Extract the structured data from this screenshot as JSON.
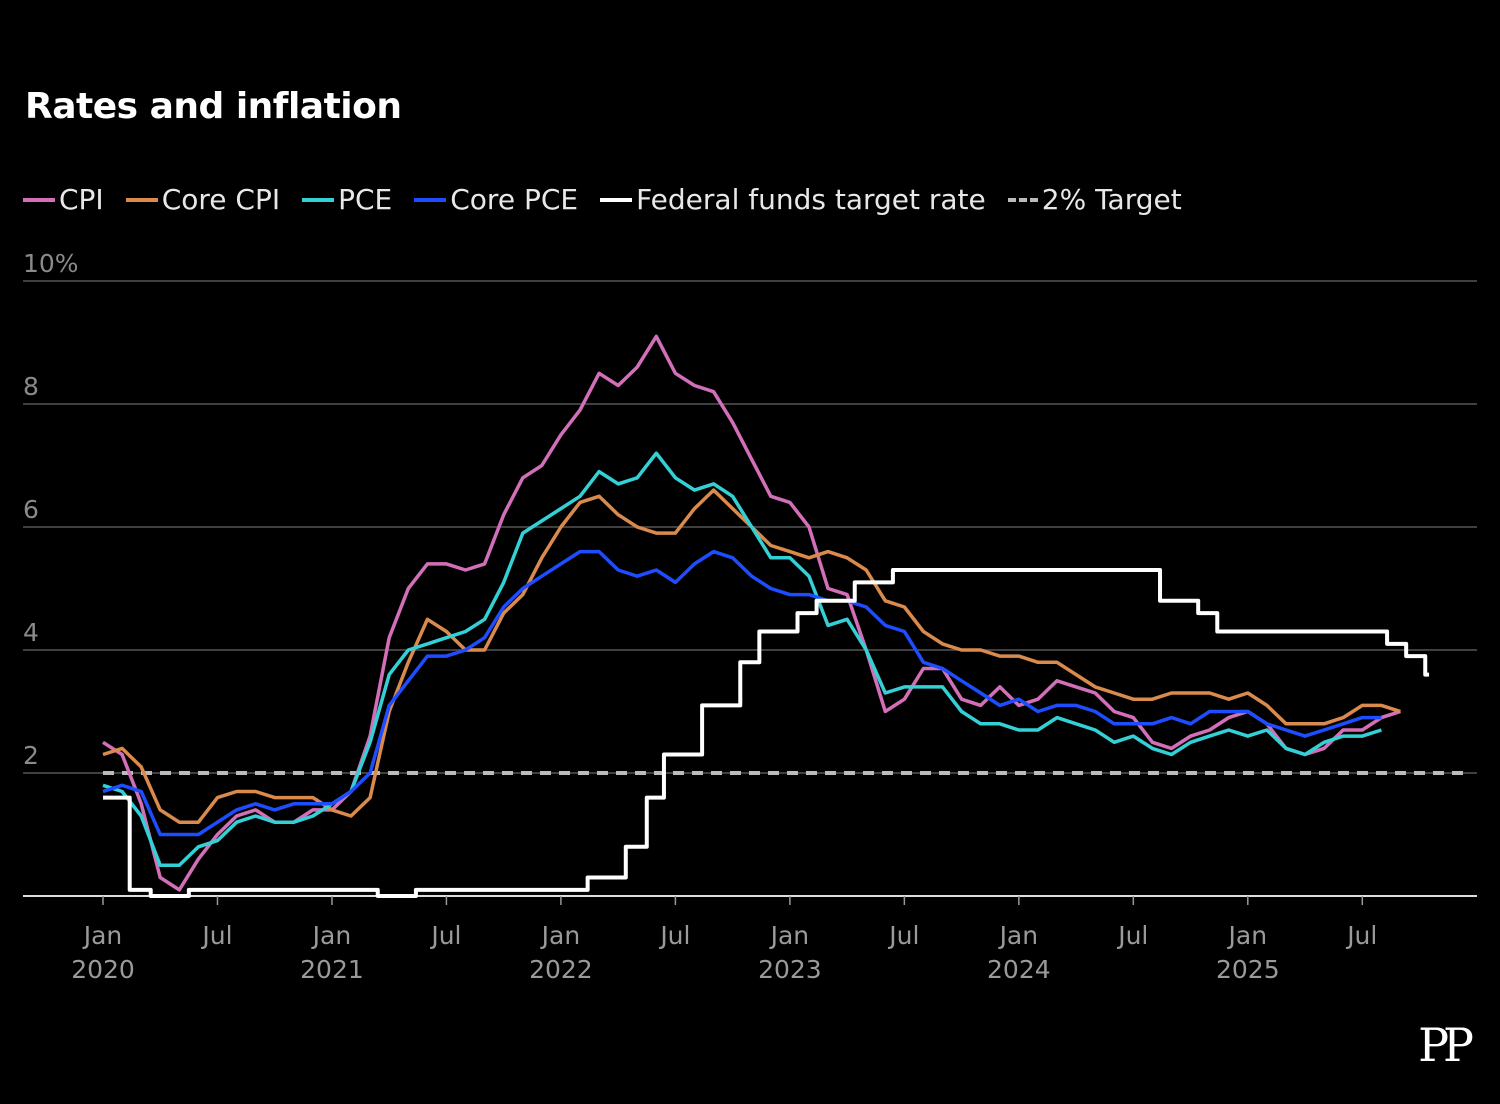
{
  "title": "Rates and inflation",
  "logo": "PP",
  "chart_data": {
    "type": "line",
    "title": "Rates and inflation",
    "xlabel": "",
    "ylabel": "",
    "ylim": [
      0,
      10
    ],
    "yticks": [
      {
        "v": 2,
        "label": "2"
      },
      {
        "v": 4,
        "label": "4"
      },
      {
        "v": 6,
        "label": "6"
      },
      {
        "v": 8,
        "label": "8"
      },
      {
        "v": 10,
        "label": "10%"
      }
    ],
    "x_start": "2020-01",
    "xticks": [
      {
        "m": 0,
        "line1": "Jan",
        "line2": "2020"
      },
      {
        "m": 6,
        "line1": "Jul",
        "line2": ""
      },
      {
        "m": 12,
        "line1": "Jan",
        "line2": "2021"
      },
      {
        "m": 18,
        "line1": "Jul",
        "line2": ""
      },
      {
        "m": 24,
        "line1": "Jan",
        "line2": "2022"
      },
      {
        "m": 30,
        "line1": "Jul",
        "line2": ""
      },
      {
        "m": 36,
        "line1": "Jan",
        "line2": "2023"
      },
      {
        "m": 42,
        "line1": "Jul",
        "line2": ""
      },
      {
        "m": 48,
        "line1": "Jan",
        "line2": "2024"
      },
      {
        "m": 54,
        "line1": "Jul",
        "line2": ""
      },
      {
        "m": 60,
        "line1": "Jan",
        "line2": "2025"
      },
      {
        "m": 66,
        "line1": "Jul",
        "line2": ""
      }
    ],
    "legend_position": "top-left",
    "series": [
      {
        "name": "CPI",
        "color": "#d36fb9",
        "values": [
          2.5,
          2.3,
          1.5,
          0.3,
          0.1,
          0.6,
          1.0,
          1.3,
          1.4,
          1.2,
          1.2,
          1.4,
          1.4,
          1.7,
          2.6,
          4.2,
          5.0,
          5.4,
          5.4,
          5.3,
          5.4,
          6.2,
          6.8,
          7.0,
          7.5,
          7.9,
          8.5,
          8.3,
          8.6,
          9.1,
          8.5,
          8.3,
          8.2,
          7.7,
          7.1,
          6.5,
          6.4,
          6.0,
          5.0,
          4.9,
          4.0,
          3.0,
          3.2,
          3.7,
          3.7,
          3.2,
          3.1,
          3.4,
          3.1,
          3.2,
          3.5,
          3.4,
          3.3,
          3.0,
          2.9,
          2.5,
          2.4,
          2.6,
          2.7,
          2.9,
          3.0,
          2.8,
          2.4,
          2.3,
          2.4,
          2.7,
          2.7,
          2.9,
          3.0
        ]
      },
      {
        "name": "Core CPI",
        "color": "#d98a4c",
        "values": [
          2.3,
          2.4,
          2.1,
          1.4,
          1.2,
          1.2,
          1.6,
          1.7,
          1.7,
          1.6,
          1.6,
          1.6,
          1.4,
          1.3,
          1.6,
          3.0,
          3.8,
          4.5,
          4.3,
          4.0,
          4.0,
          4.6,
          4.9,
          5.5,
          6.0,
          6.4,
          6.5,
          6.2,
          6.0,
          5.9,
          5.9,
          6.3,
          6.6,
          6.3,
          6.0,
          5.7,
          5.6,
          5.5,
          5.6,
          5.5,
          5.3,
          4.8,
          4.7,
          4.3,
          4.1,
          4.0,
          4.0,
          3.9,
          3.9,
          3.8,
          3.8,
          3.6,
          3.4,
          3.3,
          3.2,
          3.2,
          3.3,
          3.3,
          3.3,
          3.2,
          3.3,
          3.1,
          2.8,
          2.8,
          2.8,
          2.9,
          3.1,
          3.1,
          3.0
        ]
      },
      {
        "name": "PCE",
        "color": "#33d1d6",
        "values": [
          1.8,
          1.7,
          1.3,
          0.5,
          0.5,
          0.8,
          0.9,
          1.2,
          1.3,
          1.2,
          1.2,
          1.3,
          1.5,
          1.7,
          2.5,
          3.6,
          4.0,
          4.1,
          4.2,
          4.3,
          4.5,
          5.1,
          5.9,
          6.1,
          6.3,
          6.5,
          6.9,
          6.7,
          6.8,
          7.2,
          6.8,
          6.6,
          6.7,
          6.5,
          6.0,
          5.5,
          5.5,
          5.2,
          4.4,
          4.5,
          4.0,
          3.3,
          3.4,
          3.4,
          3.4,
          3.0,
          2.8,
          2.8,
          2.7,
          2.7,
          2.9,
          2.8,
          2.7,
          2.5,
          2.6,
          2.4,
          2.3,
          2.5,
          2.6,
          2.7,
          2.6,
          2.7,
          2.4,
          2.3,
          2.5,
          2.6,
          2.6,
          2.7
        ]
      },
      {
        "name": "Core PCE",
        "color": "#1e4dff",
        "values": [
          1.7,
          1.8,
          1.7,
          1.0,
          1.0,
          1.0,
          1.2,
          1.4,
          1.5,
          1.4,
          1.5,
          1.5,
          1.5,
          1.7,
          2.0,
          3.1,
          3.5,
          3.9,
          3.9,
          4.0,
          4.2,
          4.7,
          5.0,
          5.2,
          5.4,
          5.6,
          5.6,
          5.3,
          5.2,
          5.3,
          5.1,
          5.4,
          5.6,
          5.5,
          5.2,
          5.0,
          4.9,
          4.9,
          4.8,
          4.8,
          4.7,
          4.4,
          4.3,
          3.8,
          3.7,
          3.5,
          3.3,
          3.1,
          3.2,
          3.0,
          3.1,
          3.1,
          3.0,
          2.8,
          2.8,
          2.8,
          2.9,
          2.8,
          3.0,
          3.0,
          3.0,
          2.8,
          2.7,
          2.6,
          2.7,
          2.8,
          2.9,
          2.9
        ]
      },
      {
        "name": "Federal funds target rate",
        "color": "#ffffff",
        "type": "step",
        "steps": [
          {
            "m": 0,
            "v": 1.6
          },
          {
            "m": 1.4,
            "v": 0.1
          },
          {
            "m": 2.5,
            "v": 0.0
          },
          {
            "m": 4.5,
            "v": 0.1
          },
          {
            "m": 14.4,
            "v": 0.0
          },
          {
            "m": 16.4,
            "v": 0.1
          },
          {
            "m": 25.4,
            "v": 0.3
          },
          {
            "m": 27.4,
            "v": 0.8
          },
          {
            "m": 28.5,
            "v": 1.6
          },
          {
            "m": 29.4,
            "v": 2.3
          },
          {
            "m": 31.4,
            "v": 3.1
          },
          {
            "m": 33.4,
            "v": 3.8
          },
          {
            "m": 34.4,
            "v": 4.3
          },
          {
            "m": 36.4,
            "v": 4.6
          },
          {
            "m": 37.4,
            "v": 4.8
          },
          {
            "m": 39.4,
            "v": 5.1
          },
          {
            "m": 41.4,
            "v": 5.3
          },
          {
            "m": 55.4,
            "v": 4.8
          },
          {
            "m": 57.4,
            "v": 4.6
          },
          {
            "m": 58.4,
            "v": 4.3
          },
          {
            "m": 67.3,
            "v": 4.1
          },
          {
            "m": 68.3,
            "v": 3.9
          },
          {
            "m": 69.3,
            "v": 3.6
          },
          {
            "m": 69.5,
            "v": 3.6
          }
        ]
      },
      {
        "name": "2% Target",
        "color": "#bbbbbb",
        "type": "hline",
        "value": 2
      }
    ]
  }
}
